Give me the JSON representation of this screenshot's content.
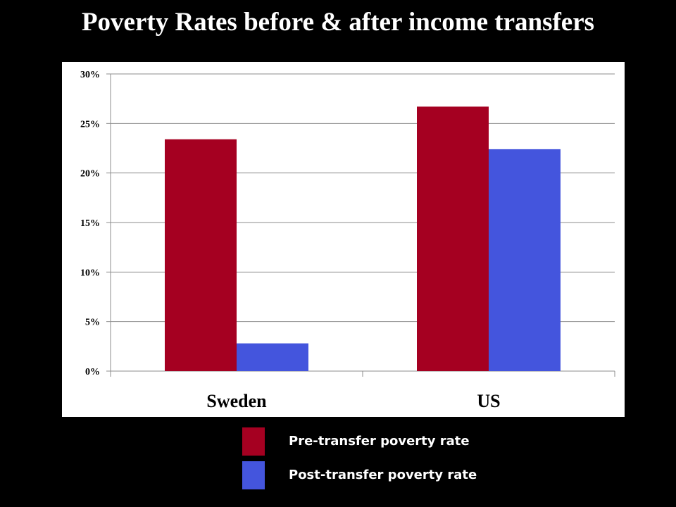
{
  "title": "Poverty Rates before & after income transfers",
  "chart_data": {
    "type": "bar",
    "title": "Poverty Rates before & after income transfers",
    "categories": [
      "Sweden",
      "US"
    ],
    "series": [
      {
        "name": "Pre-transfer poverty rate",
        "color": "#a50021",
        "values": [
          23.4,
          26.7
        ]
      },
      {
        "name": "Post-transfer poverty rate",
        "color": "#4455dd",
        "values": [
          2.8,
          22.4
        ]
      }
    ],
    "ylim": [
      0,
      30
    ],
    "yticks": [
      "0%",
      "5%",
      "10%",
      "15%",
      "20%",
      "25%",
      "30%"
    ],
    "y_unit": "%",
    "grid": true,
    "legend_placement": "bottom",
    "xlabel": "",
    "ylabel": ""
  }
}
